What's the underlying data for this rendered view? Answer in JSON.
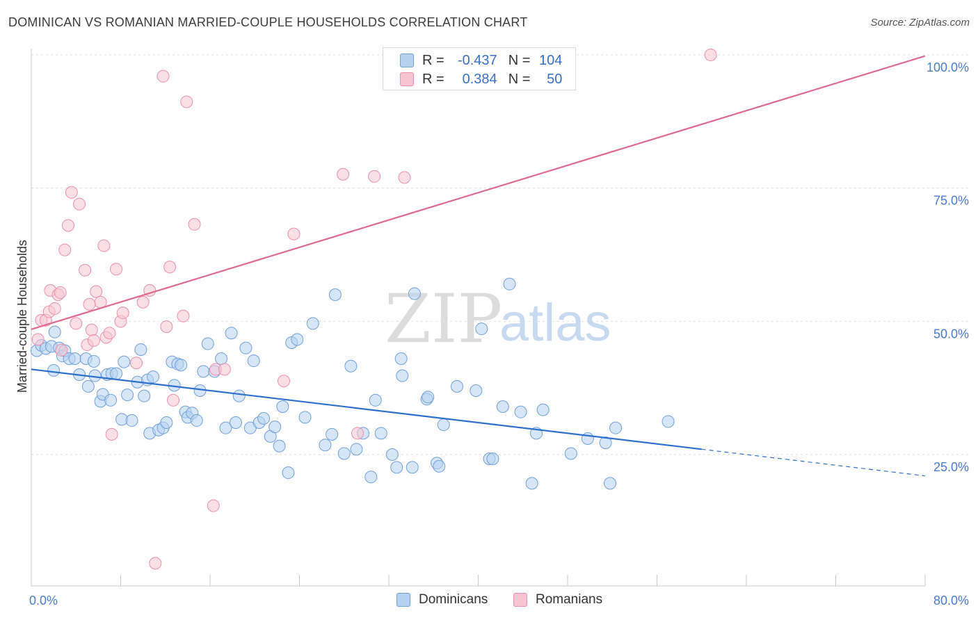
{
  "header": {
    "title": "DOMINICAN VS ROMANIAN MARRIED-COUPLE HOUSEHOLDS CORRELATION CHART",
    "source": "Source: ZipAtlas.com"
  },
  "stats": [
    {
      "r_label": "R =",
      "r_value": "-0.437",
      "n_label": "N =",
      "n_value": "104"
    },
    {
      "r_label": "R =",
      "r_value": "0.384",
      "n_label": "N =",
      "n_value": "50"
    }
  ],
  "watermark": {
    "zip": "ZIP",
    "atlas": "atlas"
  },
  "colors": {
    "dominicans_fill": "#b7d1f0",
    "dominicans_stroke": "#6f9fd8",
    "dominicans_line": "#2f6fcc",
    "romanians_fill": "#f7c4d4",
    "romanians_stroke": "#ea8fac",
    "romanians_line": "#e06990",
    "grid": "#dddddd",
    "tick_text": "#4a7bd0"
  },
  "chart_data": {
    "type": "scatter",
    "title": "DOMINICAN VS ROMANIAN MARRIED-COUPLE HOUSEHOLDS CORRELATION CHART",
    "xlabel": "",
    "ylabel": "Married-couple Households",
    "xlim": [
      0,
      80
    ],
    "ylim": [
      0,
      104
    ],
    "x_tick_labels": [
      "0.0%",
      "80.0%"
    ],
    "y_ticks": [
      25,
      50,
      75,
      100
    ],
    "y_tick_labels": [
      "25.0%",
      "50.0%",
      "75.0%",
      "100.0%"
    ],
    "grid": true,
    "legend": "bottom-center",
    "series": [
      {
        "name": "Dominicans",
        "r": -0.437,
        "n": 104,
        "trend": {
          "x0": 0,
          "y0": 41.0,
          "x1": 60,
          "y1": 26.0,
          "dashed_to_x": 80,
          "dashed_to_y": 21.0
        },
        "points": [
          [
            0.5,
            44.5
          ],
          [
            0.9,
            45.5
          ],
          [
            1.3,
            44.9
          ],
          [
            1.8,
            45.3
          ],
          [
            2.0,
            40.8
          ],
          [
            2.1,
            48.0
          ],
          [
            2.5,
            45.0
          ],
          [
            2.8,
            43.5
          ],
          [
            3.0,
            44.5
          ],
          [
            3.4,
            43.0
          ],
          [
            3.9,
            43.0
          ],
          [
            4.3,
            40.0
          ],
          [
            4.9,
            43.0
          ],
          [
            5.1,
            37.8
          ],
          [
            5.6,
            42.5
          ],
          [
            5.7,
            39.8
          ],
          [
            6.2,
            35.0
          ],
          [
            6.4,
            36.3
          ],
          [
            6.8,
            40.0
          ],
          [
            7.1,
            35.2
          ],
          [
            7.2,
            40.2
          ],
          [
            7.6,
            40.2
          ],
          [
            8.1,
            31.6
          ],
          [
            8.3,
            42.4
          ],
          [
            8.6,
            36.2
          ],
          [
            9.0,
            31.4
          ],
          [
            9.5,
            38.6
          ],
          [
            9.8,
            44.7
          ],
          [
            10.1,
            36.0
          ],
          [
            10.4,
            39.0
          ],
          [
            10.6,
            29.0
          ],
          [
            10.9,
            39.6
          ],
          [
            11.4,
            29.6
          ],
          [
            11.8,
            30.0
          ],
          [
            12.1,
            31.0
          ],
          [
            12.6,
            42.4
          ],
          [
            12.8,
            38.0
          ],
          [
            13.1,
            42.0
          ],
          [
            13.4,
            41.8
          ],
          [
            13.8,
            33.0
          ],
          [
            14.0,
            32.0
          ],
          [
            14.4,
            32.8
          ],
          [
            14.8,
            31.4
          ],
          [
            15.1,
            37.0
          ],
          [
            15.4,
            40.6
          ],
          [
            15.8,
            45.8
          ],
          [
            16.4,
            40.6
          ],
          [
            17.0,
            43.0
          ],
          [
            17.4,
            30.0
          ],
          [
            17.9,
            47.8
          ],
          [
            18.3,
            31.0
          ],
          [
            18.6,
            36.0
          ],
          [
            19.2,
            45.0
          ],
          [
            19.6,
            30.0
          ],
          [
            19.9,
            42.6
          ],
          [
            20.4,
            31.0
          ],
          [
            20.8,
            31.8
          ],
          [
            21.4,
            28.4
          ],
          [
            21.8,
            30.2
          ],
          [
            22.2,
            26.6
          ],
          [
            22.5,
            34.0
          ],
          [
            23.0,
            21.6
          ],
          [
            23.3,
            46.0
          ],
          [
            23.8,
            46.6
          ],
          [
            24.5,
            32.0
          ],
          [
            25.2,
            49.6
          ],
          [
            26.3,
            26.8
          ],
          [
            26.9,
            28.8
          ],
          [
            27.2,
            55.0
          ],
          [
            28.0,
            25.2
          ],
          [
            28.6,
            41.6
          ],
          [
            29.1,
            26.0
          ],
          [
            29.7,
            29.0
          ],
          [
            30.4,
            20.8
          ],
          [
            30.8,
            35.2
          ],
          [
            31.3,
            29.0
          ],
          [
            32.3,
            25.0
          ],
          [
            32.7,
            22.6
          ],
          [
            33.1,
            43.0
          ],
          [
            33.2,
            39.8
          ],
          [
            34.1,
            22.6
          ],
          [
            34.3,
            55.2
          ],
          [
            35.4,
            35.4
          ],
          [
            35.5,
            35.8
          ],
          [
            36.3,
            23.4
          ],
          [
            36.5,
            22.8
          ],
          [
            36.9,
            30.6
          ],
          [
            38.1,
            37.8
          ],
          [
            39.8,
            37.0
          ],
          [
            40.3,
            48.6
          ],
          [
            41.0,
            24.2
          ],
          [
            41.3,
            24.2
          ],
          [
            42.2,
            34.0
          ],
          [
            42.8,
            57.0
          ],
          [
            43.8,
            33.0
          ],
          [
            44.8,
            19.6
          ],
          [
            45.2,
            29.0
          ],
          [
            45.8,
            33.4
          ],
          [
            48.3,
            25.2
          ],
          [
            49.8,
            28.0
          ],
          [
            51.4,
            27.2
          ],
          [
            51.8,
            19.6
          ],
          [
            52.3,
            30.0
          ],
          [
            57.0,
            31.2
          ]
        ]
      },
      {
        "name": "Romanians",
        "r": 0.384,
        "n": 50,
        "trend": {
          "x0": 0,
          "y0": 48.5,
          "x1": 80,
          "y1": 99.8
        },
        "points": [
          [
            0.6,
            46.6
          ],
          [
            0.9,
            50.2
          ],
          [
            1.3,
            50.2
          ],
          [
            1.6,
            51.8
          ],
          [
            1.7,
            55.8
          ],
          [
            2.1,
            52.4
          ],
          [
            2.4,
            55.0
          ],
          [
            2.6,
            55.4
          ],
          [
            2.7,
            44.6
          ],
          [
            3.0,
            63.4
          ],
          [
            3.3,
            68.0
          ],
          [
            3.6,
            74.2
          ],
          [
            4.0,
            49.6
          ],
          [
            4.3,
            72.0
          ],
          [
            4.8,
            59.6
          ],
          [
            5.0,
            45.6
          ],
          [
            5.2,
            53.2
          ],
          [
            5.4,
            48.4
          ],
          [
            5.6,
            46.4
          ],
          [
            5.8,
            55.6
          ],
          [
            6.2,
            53.6
          ],
          [
            6.5,
            64.2
          ],
          [
            6.7,
            47.0
          ],
          [
            7.0,
            47.8
          ],
          [
            7.2,
            28.8
          ],
          [
            7.6,
            59.8
          ],
          [
            8.0,
            50.0
          ],
          [
            8.2,
            51.6
          ],
          [
            9.4,
            42.2
          ],
          [
            10.0,
            53.6
          ],
          [
            10.6,
            55.8
          ],
          [
            11.1,
            4.6
          ],
          [
            11.8,
            96.0
          ],
          [
            12.1,
            49.0
          ],
          [
            12.4,
            60.2
          ],
          [
            12.7,
            35.2
          ],
          [
            13.6,
            51.0
          ],
          [
            13.9,
            91.2
          ],
          [
            14.6,
            68.2
          ],
          [
            16.3,
            15.4
          ],
          [
            16.5,
            41.0
          ],
          [
            17.3,
            41.0
          ],
          [
            22.6,
            38.8
          ],
          [
            23.5,
            66.4
          ],
          [
            27.9,
            77.6
          ],
          [
            29.2,
            29.0
          ],
          [
            30.7,
            77.2
          ],
          [
            33.4,
            77.0
          ],
          [
            35.6,
            100.0
          ],
          [
            60.8,
            100.0
          ]
        ]
      }
    ]
  }
}
